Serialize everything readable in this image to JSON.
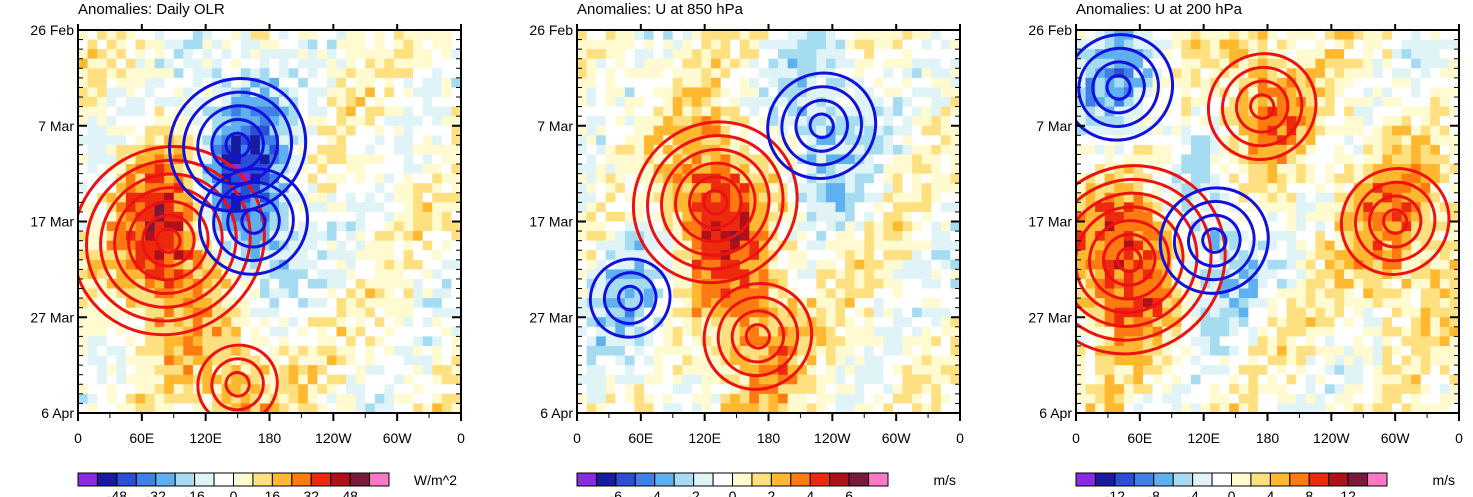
{
  "chart_data": [
    {
      "type": "heatmap",
      "title": "Anomalies: Daily OLR",
      "units": "W/m^2",
      "y_tick_labels": [
        "26 Feb",
        "7 Mar",
        "17 Mar",
        "27 Mar",
        "6 Apr"
      ],
      "x_tick_labels": [
        "0",
        "60E",
        "120E",
        "180",
        "120W",
        "60W",
        "0"
      ],
      "colorbar_labels": [
        "-48",
        "-32",
        "-16",
        "0",
        "16",
        "32",
        "48"
      ],
      "levels": [
        -56,
        -48,
        -40,
        -32,
        -24,
        -16,
        -8,
        0,
        8,
        16,
        24,
        32,
        40,
        48,
        56
      ],
      "contours": [
        {
          "polarity": "positive",
          "center": [
            85,
            22
          ],
          "rings": 7
        },
        {
          "polarity": "positive",
          "center": [
            150,
            37
          ],
          "rings": 3
        },
        {
          "polarity": "negative",
          "center": [
            150,
            12
          ],
          "rings": 5
        },
        {
          "polarity": "negative",
          "center": [
            165,
            20
          ],
          "rings": 4
        }
      ]
    },
    {
      "type": "heatmap",
      "title": "Anomalies: U at 850 hPa",
      "units": "m/s",
      "y_tick_labels": [
        "26 Feb",
        "7 Mar",
        "17 Mar",
        "27 Mar",
        "6 Apr"
      ],
      "x_tick_labels": [
        "0",
        "60E",
        "120E",
        "180",
        "120W",
        "60W",
        "0"
      ],
      "colorbar_labels": [
        "-6",
        "-4",
        "-2",
        "0",
        "2",
        "4",
        "6"
      ],
      "levels": [
        -7,
        -6,
        -5,
        -4,
        -3,
        -2,
        -1,
        0,
        1,
        2,
        3,
        4,
        5,
        6,
        7
      ],
      "contours": [
        {
          "polarity": "positive",
          "center": [
            130,
            18
          ],
          "rings": 6
        },
        {
          "polarity": "positive",
          "center": [
            170,
            32
          ],
          "rings": 4
        },
        {
          "polarity": "negative",
          "center": [
            230,
            10
          ],
          "rings": 4
        },
        {
          "polarity": "negative",
          "center": [
            50,
            28
          ],
          "rings": 3
        }
      ]
    },
    {
      "type": "heatmap",
      "title": "Anomalies: U at 200 hPa",
      "units": "m/s",
      "y_tick_labels": [
        "26 Feb",
        "7 Mar",
        "17 Mar",
        "27 Mar",
        "6 Apr"
      ],
      "x_tick_labels": [
        "0",
        "60E",
        "120E",
        "180",
        "120W",
        "60W",
        "0"
      ],
      "colorbar_labels": [
        "-12",
        "-8",
        "-4",
        "0",
        "4",
        "8",
        "12"
      ],
      "levels": [
        -14,
        -12,
        -10,
        -8,
        -6,
        -4,
        -2,
        0,
        2,
        4,
        6,
        8,
        10,
        12,
        14
      ],
      "contours": [
        {
          "polarity": "positive",
          "center": [
            50,
            24
          ],
          "rings": 7
        },
        {
          "polarity": "positive",
          "center": [
            175,
            8
          ],
          "rings": 4
        },
        {
          "polarity": "positive",
          "center": [
            300,
            20
          ],
          "rings": 4
        },
        {
          "polarity": "negative",
          "center": [
            40,
            6
          ],
          "rings": 4
        },
        {
          "polarity": "negative",
          "center": [
            130,
            22
          ],
          "rings": 4
        }
      ]
    }
  ],
  "palette": [
    "#8a2be2",
    "#1a1aa0",
    "#2a4fd6",
    "#3f7fe6",
    "#5fb0f0",
    "#a6dcf2",
    "#e0f4f8",
    "#ffffff",
    "#fffad0",
    "#ffe080",
    "#ffb830",
    "#ff7a10",
    "#ee2a0e",
    "#b0101a",
    "#7a1a3a",
    "#ff78c8"
  ],
  "contour_colors": {
    "positive": "#ee1111",
    "negative": "#1111dd"
  }
}
